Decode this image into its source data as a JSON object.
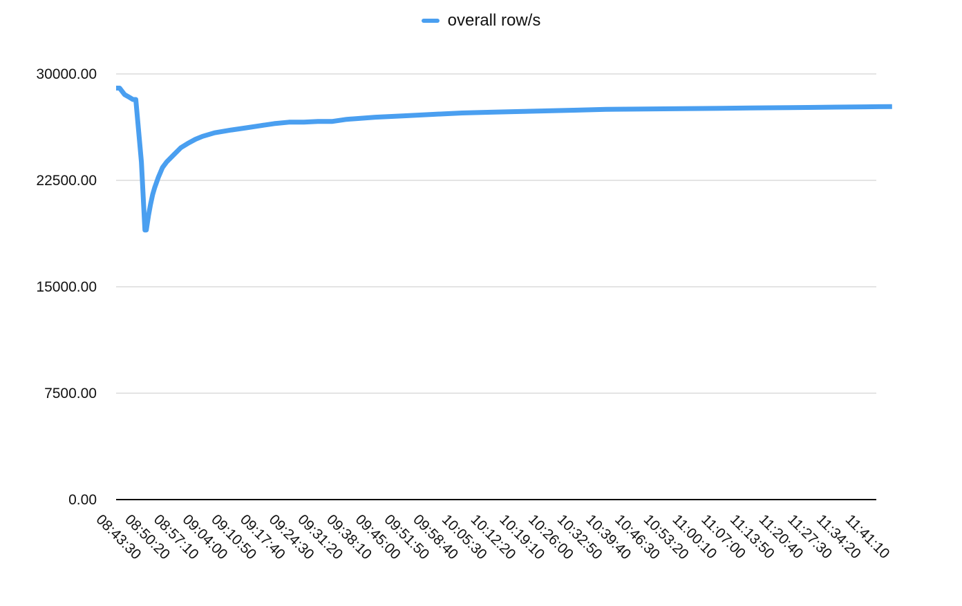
{
  "chart_data": {
    "type": "line",
    "title": "",
    "xlabel": "",
    "ylabel": "",
    "ylim": [
      0,
      30000
    ],
    "yticks": [
      0,
      7500,
      15000,
      22500,
      30000
    ],
    "ytick_labels": [
      "0.00",
      "7500.00",
      "15000.00",
      "22500.00",
      "30000.00"
    ],
    "xtick_labels": [
      "08:43:30",
      "08:50:20",
      "08:57:10",
      "09:04:00",
      "09:10:50",
      "09:17:40",
      "09:24:30",
      "09:31:20",
      "09:38:10",
      "09:45:00",
      "09:51:50",
      "09:58:40",
      "10:05:30",
      "10:12:20",
      "10:19:10",
      "10:26:00",
      "10:32:50",
      "10:39:40",
      "10:46:30",
      "10:53:20",
      "11:00:10",
      "11:07:00",
      "11:13:50",
      "11:20:40",
      "11:27:30",
      "11:34:20",
      "11:41:10"
    ],
    "grid": true,
    "legend_position": "top-center",
    "series": [
      {
        "name": "overall row/s",
        "color": "#4A9FF0",
        "x": [
          "08:43:30",
          "08:44:20",
          "08:45:30",
          "08:46:40",
          "08:47:30",
          "08:48:10",
          "08:49:30",
          "08:50:20",
          "08:50:40",
          "08:51:10",
          "08:51:40",
          "08:52:10",
          "08:52:40",
          "08:53:30",
          "08:54:30",
          "08:55:30",
          "08:57:10",
          "08:58:50",
          "09:00:30",
          "09:02:20",
          "09:04:00",
          "09:06:50",
          "09:10:50",
          "09:14:20",
          "09:17:40",
          "09:21:00",
          "09:24:30",
          "09:28:00",
          "09:31:20",
          "09:34:40",
          "09:38:10",
          "09:45:00",
          "09:51:50",
          "09:58:40",
          "10:05:30",
          "10:12:20",
          "10:19:10",
          "10:26:00",
          "10:32:50",
          "10:39:40",
          "10:46:30",
          "10:53:20",
          "11:00:10",
          "11:07:00",
          "11:13:50",
          "11:20:40",
          "11:27:30",
          "11:34:20",
          "11:41:10",
          "11:47:30"
        ],
        "values": [
          29000,
          29000,
          28550,
          28350,
          28200,
          28200,
          23800,
          19000,
          19000,
          20000,
          20800,
          21500,
          22000,
          22700,
          23400,
          23800,
          24300,
          24800,
          25100,
          25400,
          25600,
          25850,
          26050,
          26200,
          26350,
          26500,
          26600,
          26600,
          26650,
          26650,
          26800,
          26950,
          27050,
          27150,
          27250,
          27300,
          27350,
          27400,
          27450,
          27500,
          27520,
          27540,
          27560,
          27580,
          27600,
          27620,
          27640,
          27660,
          27680,
          27700
        ]
      }
    ]
  }
}
